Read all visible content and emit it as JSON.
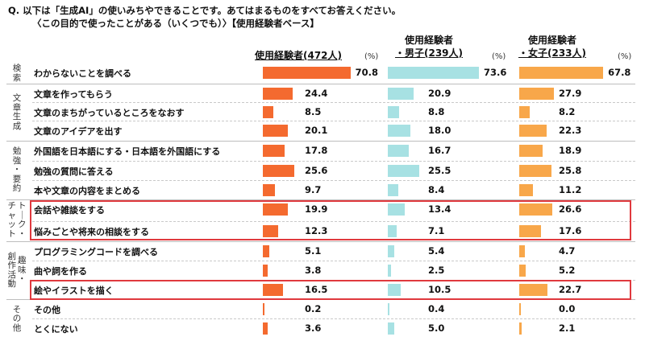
{
  "question": {
    "line1": "Q. 以下は「生成AI」の使いみちやできることです。あてはまるものをすべてお答えください。",
    "line2": "〈この目的で使ったことがある（いくつでも）〉【使用経験者ベース】"
  },
  "columns": [
    {
      "line1": "使用経験者(472人)",
      "line2": "",
      "unit": "(%)",
      "color": "#f46a2f"
    },
    {
      "line1": "使用経験者",
      "line2": "・男子(239人)",
      "unit": "(%)",
      "color": "#a7e1e3"
    },
    {
      "line1": "使用経験者",
      "line2": "・女子(233人)",
      "unit": "(%)",
      "color": "#f8a74a"
    }
  ],
  "groups": [
    {
      "label": "検索"
    },
    {
      "label": "文章生成"
    },
    {
      "label": "勉強・要約"
    },
    {
      "label": "トーク・チャット"
    },
    {
      "label": "趣味・創作活動"
    },
    {
      "label": "その他"
    }
  ],
  "chart_data": {
    "type": "bar",
    "categories": [
      "わからないことを調べる",
      "文章を作ってもらう",
      "文章のまちがっているところをなおす",
      "文章のアイデアを出す",
      "外国語を日本語にする・日本語を外国語にする",
      "勉強の質問に答える",
      "本や文章の内容をまとめる",
      "会話や雑談をする",
      "悩みごとや将来の相談をする",
      "プログラミングコードを調べる",
      "曲や詞を作る",
      "絵やイラストを描く",
      "その他",
      "とくにない"
    ],
    "series": [
      {
        "name": "使用経験者(472人)",
        "values": [
          70.8,
          24.4,
          8.5,
          20.1,
          17.8,
          25.6,
          9.7,
          19.9,
          12.3,
          5.1,
          3.8,
          16.5,
          0.2,
          3.6
        ]
      },
      {
        "name": "使用経験者・男子(239人)",
        "values": [
          73.6,
          20.9,
          8.8,
          18.0,
          16.7,
          25.5,
          8.4,
          13.4,
          7.1,
          5.4,
          2.5,
          10.5,
          0.4,
          5.0
        ]
      },
      {
        "name": "使用経験者・女子(233人)",
        "values": [
          67.8,
          27.9,
          8.2,
          22.3,
          18.9,
          25.8,
          11.2,
          26.6,
          17.6,
          4.7,
          5.2,
          22.7,
          0.0,
          2.1
        ]
      }
    ],
    "value_labels": [
      [
        "70.8",
        "24.4",
        "8.5",
        "20.1",
        "17.8",
        "25.6",
        "9.7",
        "19.9",
        "12.3",
        "5.1",
        "3.8",
        "16.5",
        "0.2",
        "3.6"
      ],
      [
        "73.6",
        "20.9",
        "8.8",
        "18.0",
        "16.7",
        "25.5",
        "8.4",
        "13.4",
        "7.1",
        "5.4",
        "2.5",
        "10.5",
        "0.4",
        "5.0"
      ],
      [
        "67.8",
        "27.9",
        "8.2",
        "22.3",
        "18.9",
        "25.8",
        "11.2",
        "26.6",
        "17.6",
        "4.7",
        "5.2",
        "22.7",
        "0.0",
        "2.1"
      ]
    ],
    "ylabel": "(%)",
    "xlim": [
      0,
      100
    ]
  }
}
